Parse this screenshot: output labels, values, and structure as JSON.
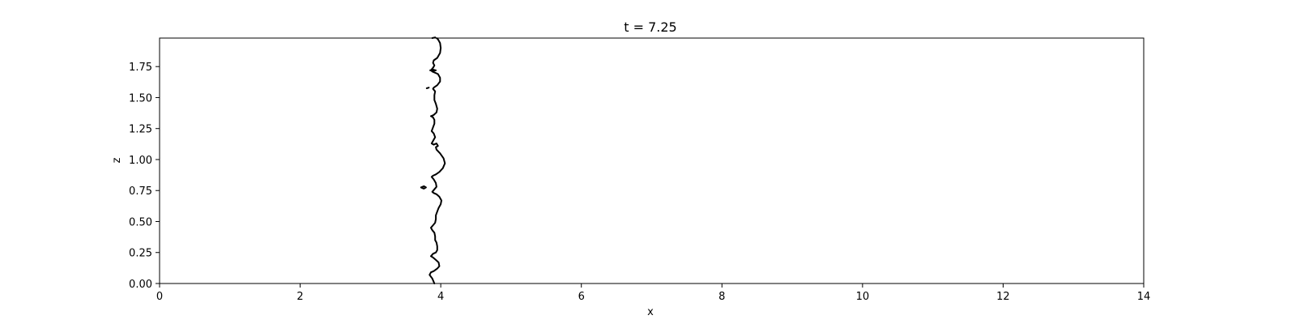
{
  "chart_data": {
    "type": "line",
    "title": "t = 7.25",
    "xlabel": "x",
    "ylabel": "z",
    "xlim": [
      0,
      14
    ],
    "ylim": [
      0,
      1.98
    ],
    "xticks": [
      0,
      2,
      4,
      6,
      8,
      10,
      12,
      14
    ],
    "xtick_labels": [
      "0",
      "2",
      "4",
      "6",
      "8",
      "10",
      "12",
      "14"
    ],
    "yticks": [
      0,
      0.25,
      0.5,
      0.75,
      1.0,
      1.25,
      1.5,
      1.75
    ],
    "ytick_labels": [
      "0.00",
      "0.25",
      "0.50",
      "0.75",
      "1.00",
      "1.25",
      "1.50",
      "1.75"
    ],
    "grid": false,
    "line_color": "#000000",
    "series": [
      {
        "values": [
          [
            3.91,
            0.0
          ],
          [
            3.88,
            0.04
          ],
          [
            3.84,
            0.07
          ],
          [
            3.86,
            0.09
          ],
          [
            3.9,
            0.1
          ],
          [
            3.95,
            0.12
          ],
          [
            3.98,
            0.14
          ],
          [
            3.97,
            0.17
          ],
          [
            3.93,
            0.19
          ],
          [
            3.89,
            0.21
          ],
          [
            3.86,
            0.22
          ],
          [
            3.89,
            0.24
          ],
          [
            3.93,
            0.25
          ],
          [
            3.95,
            0.27
          ],
          [
            3.95,
            0.3
          ],
          [
            3.94,
            0.33
          ],
          [
            3.92,
            0.35
          ],
          [
            3.92,
            0.38
          ],
          [
            3.91,
            0.41
          ],
          [
            3.88,
            0.43
          ],
          [
            3.86,
            0.45
          ],
          [
            3.89,
            0.47
          ],
          [
            3.92,
            0.49
          ],
          [
            3.93,
            0.52
          ],
          [
            3.93,
            0.55
          ],
          [
            3.95,
            0.58
          ],
          [
            3.97,
            0.61
          ],
          [
            4.0,
            0.64
          ],
          [
            4.01,
            0.67
          ],
          [
            3.98,
            0.7
          ],
          [
            3.94,
            0.72
          ],
          [
            3.9,
            0.73
          ],
          [
            3.88,
            0.74
          ],
          [
            3.91,
            0.76
          ],
          [
            3.94,
            0.78
          ],
          [
            3.93,
            0.81
          ],
          [
            3.9,
            0.84
          ],
          [
            3.87,
            0.86
          ],
          [
            3.89,
            0.87
          ],
          [
            3.93,
            0.88
          ],
          [
            3.98,
            0.9
          ],
          [
            4.03,
            0.93
          ],
          [
            4.06,
            0.97
          ],
          [
            4.04,
            1.01
          ],
          [
            3.99,
            1.05
          ],
          [
            3.94,
            1.08
          ],
          [
            3.93,
            1.1
          ],
          [
            3.96,
            1.11
          ],
          [
            3.94,
            1.13
          ],
          [
            3.9,
            1.12
          ],
          [
            3.87,
            1.13
          ],
          [
            3.89,
            1.15
          ],
          [
            3.92,
            1.18
          ],
          [
            3.9,
            1.21
          ],
          [
            3.87,
            1.23
          ],
          [
            3.89,
            1.26
          ],
          [
            3.91,
            1.29
          ],
          [
            3.91,
            1.32
          ],
          [
            3.89,
            1.34
          ],
          [
            3.86,
            1.35
          ],
          [
            3.9,
            1.36
          ],
          [
            3.94,
            1.38
          ],
          [
            3.95,
            1.41
          ],
          [
            3.93,
            1.45
          ],
          [
            3.91,
            1.48
          ],
          [
            3.91,
            1.52
          ],
          [
            3.92,
            1.55
          ],
          [
            3.89,
            1.57
          ],
          [
            3.9,
            1.58
          ],
          [
            3.95,
            1.6
          ],
          [
            3.99,
            1.63
          ],
          [
            3.99,
            1.66
          ],
          [
            3.96,
            1.69
          ],
          [
            3.92,
            1.7
          ],
          [
            3.88,
            1.71
          ],
          [
            3.86,
            1.72
          ],
          [
            3.89,
            1.74
          ],
          [
            3.91,
            1.76
          ],
          [
            3.89,
            1.78
          ],
          [
            3.9,
            1.8
          ],
          [
            3.95,
            1.82
          ],
          [
            3.99,
            1.86
          ],
          [
            4.0,
            1.9
          ],
          [
            3.99,
            1.94
          ],
          [
            3.96,
            1.97
          ],
          [
            3.94,
            1.98
          ]
        ]
      },
      {
        "values": [
          [
            3.85,
            1.72
          ],
          [
            3.89,
            1.725
          ],
          [
            3.93,
            1.72
          ],
          [
            3.89,
            1.715
          ],
          [
            3.85,
            1.72
          ]
        ]
      },
      {
        "values": [
          [
            3.8,
            1.575
          ],
          [
            3.83,
            1.58
          ]
        ]
      },
      {
        "values": [
          [
            3.72,
            0.775
          ],
          [
            3.76,
            0.785
          ],
          [
            3.79,
            0.775
          ],
          [
            3.76,
            0.765
          ],
          [
            3.72,
            0.775
          ]
        ]
      },
      {
        "values": [
          [
            3.88,
            1.98
          ],
          [
            3.92,
            1.985
          ]
        ]
      }
    ]
  }
}
